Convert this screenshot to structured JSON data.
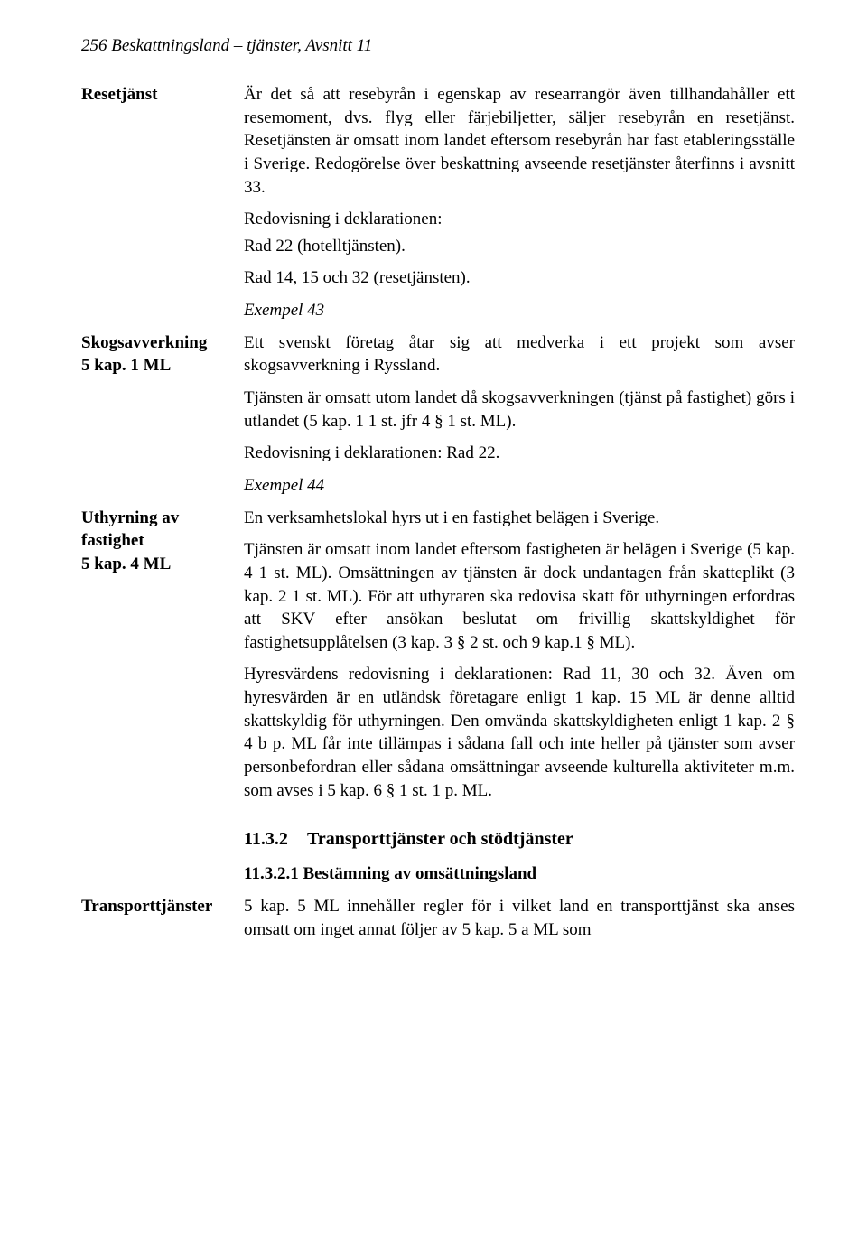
{
  "header": "256 Beskattningsland – tjänster, Avsnitt 11",
  "margin": {
    "resetjanst": "Resetjänst",
    "skog_l1": "Skogsavverkning",
    "skog_l2": "5 kap. 1 ML",
    "uthyr_l1": "Uthyrning av",
    "uthyr_l2": "fastighet",
    "uthyr_l3": "5 kap. 4 ML",
    "transport": "Transporttjänster"
  },
  "body": {
    "p1": "Är det så att resebyrån i egenskap av researrangör även tillhandahåller ett resemoment, dvs. flyg eller färjebiljetter, säljer resebyrån en resetjänst. Resetjänsten är omsatt inom landet eftersom resebyrån har fast etableringsställe i Sverige. Redogörelse över beskattning avseende rese­tjänster återfinns i avsnitt 33.",
    "p2a": "Redovisning i deklarationen:",
    "p2b": "Rad 22 (hotelltjänsten).",
    "p3": "Rad 14, 15 och 32 (resetjänsten).",
    "ex43": "Exempel 43",
    "p4": "Ett svenskt företag åtar sig att medverka i ett projekt som avser skogsavverkning i Ryssland.",
    "p5": "Tjänsten är omsatt utom landet då skogsavverkningen (tjänst på fastighet) görs i utlandet (5 kap. 1 1 st. jfr 4 § 1 st. ML).",
    "p6": "Redovisning i deklarationen: Rad 22.",
    "ex44": "Exempel 44",
    "p7": "En verksamhetslokal hyrs ut i en fastighet belägen i Sverige.",
    "p8": "Tjänsten är omsatt inom landet eftersom fastigheten är belägen i Sverige (5 kap. 4 1 st. ML). Omsättningen av tjänsten är dock undantagen från skatteplikt (3 kap. 2 1 st. ML). För att uthyraren ska redovisa skatt för uthyrningen erfordras att SKV efter ansökan beslutat om frivillig skattskyldighet för fastighetsupplåtelsen (3 kap. 3 § 2 st. och 9 kap.1 § ML).",
    "p9": "Hyresvärdens redovisning i deklarationen: Rad 11, 30 och 32. Även om hyresvärden är en utländsk företagare enligt 1 kap. 15 ML är denne alltid skattskyldig för uthyrningen. Den omvända skattskyldigheten enligt 1 kap. 2 § 4 b p. ML får inte tillämpas i sådana fall och inte heller på tjänster som avser personbefordran eller sådana omsättningar avseende kulturella aktiviteter m.m. som avses i 5 kap. 6 § 1 st. 1 p. ML.",
    "sec_num": "11.3.2",
    "sec_title": "Transporttjänster och stödtjänster",
    "subsec": "11.3.2.1 Bestämning av omsättningsland",
    "p10": "5 kap. 5 ML innehåller regler för i vilket land en transporttjänst ska anses omsatt om inget annat följer av 5 kap. 5 a ML som"
  }
}
